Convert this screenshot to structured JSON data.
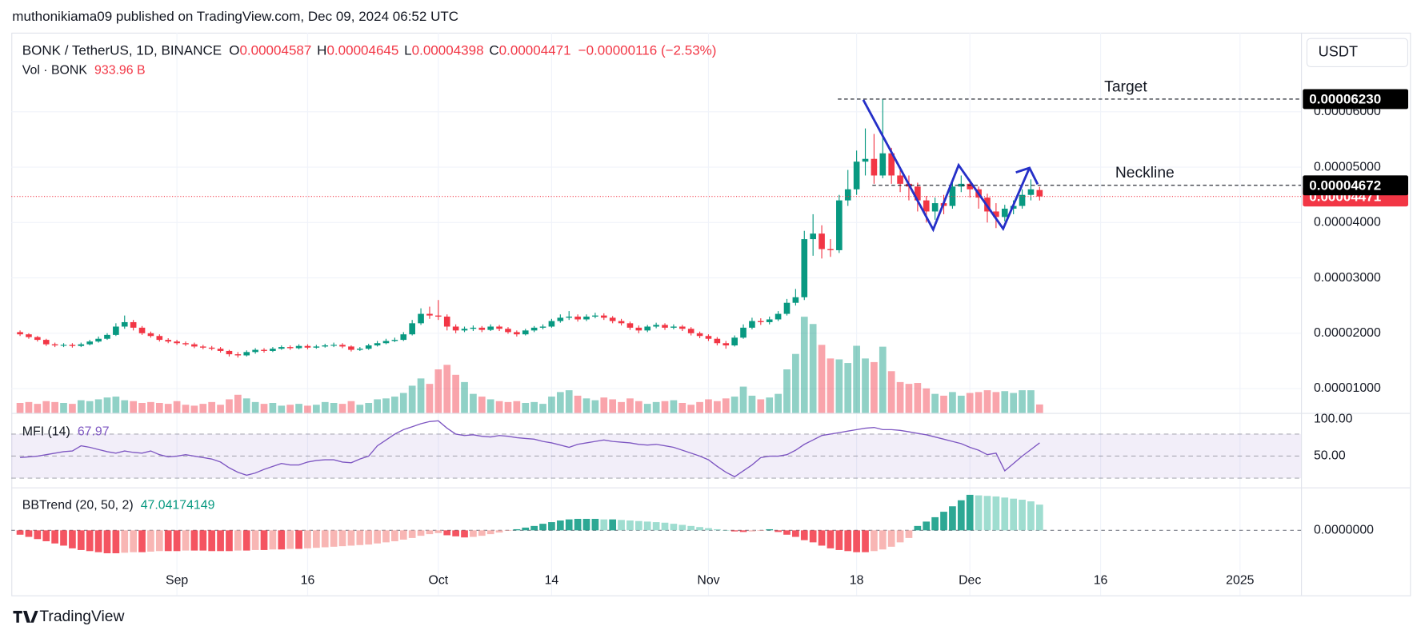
{
  "header": {
    "publisher": "muthonikiama09 published on TradingView.com, Dec 09, 2024 06:52 UTC",
    "symbol": "BONK / TetherUS, 1D, BINANCE",
    "ohlc_letters": [
      "O",
      "H",
      "L",
      "C"
    ],
    "change_label": "−0.00000116 (−2.53%)",
    "currency": "USDT"
  },
  "chart_data": [
    {
      "type": "candlestick",
      "up_color": "#089981",
      "down_color": "#f23645",
      "x": [
        "2024-08-14",
        "2024-08-15",
        "2024-08-16",
        "2024-08-17",
        "2024-08-18",
        "2024-08-19",
        "2024-08-20",
        "2024-08-21",
        "2024-08-22",
        "2024-08-23",
        "2024-08-24",
        "2024-08-25",
        "2024-08-26",
        "2024-08-27",
        "2024-08-28",
        "2024-08-29",
        "2024-08-30",
        "2024-08-31",
        "2024-09-01",
        "2024-09-02",
        "2024-09-03",
        "2024-09-04",
        "2024-09-05",
        "2024-09-06",
        "2024-09-07",
        "2024-09-08",
        "2024-09-09",
        "2024-09-10",
        "2024-09-11",
        "2024-09-12",
        "2024-09-13",
        "2024-09-14",
        "2024-09-15",
        "2024-09-16",
        "2024-09-17",
        "2024-09-18",
        "2024-09-19",
        "2024-09-20",
        "2024-09-21",
        "2024-09-22",
        "2024-09-23",
        "2024-09-24",
        "2024-09-25",
        "2024-09-26",
        "2024-09-27",
        "2024-09-28",
        "2024-09-29",
        "2024-09-30",
        "2024-10-01",
        "2024-10-02",
        "2024-10-03",
        "2024-10-04",
        "2024-10-05",
        "2024-10-06",
        "2024-10-07",
        "2024-10-08",
        "2024-10-09",
        "2024-10-10",
        "2024-10-11",
        "2024-10-12",
        "2024-10-13",
        "2024-10-14",
        "2024-10-15",
        "2024-10-16",
        "2024-10-17",
        "2024-10-18",
        "2024-10-19",
        "2024-10-20",
        "2024-10-21",
        "2024-10-22",
        "2024-10-23",
        "2024-10-24",
        "2024-10-25",
        "2024-10-26",
        "2024-10-27",
        "2024-10-28",
        "2024-10-29",
        "2024-10-30",
        "2024-10-31",
        "2024-11-01",
        "2024-11-02",
        "2024-11-03",
        "2024-11-04",
        "2024-11-05",
        "2024-11-06",
        "2024-11-07",
        "2024-11-08",
        "2024-11-09",
        "2024-11-10",
        "2024-11-11",
        "2024-11-12",
        "2024-11-13",
        "2024-11-14",
        "2024-11-15",
        "2024-11-16",
        "2024-11-17",
        "2024-11-18",
        "2024-11-19",
        "2024-11-20",
        "2024-11-21",
        "2024-11-22",
        "2024-11-23",
        "2024-11-24",
        "2024-11-25",
        "2024-11-26",
        "2024-11-27",
        "2024-11-28",
        "2024-11-29",
        "2024-11-30",
        "2024-12-01",
        "2024-12-02",
        "2024-12-03",
        "2024-12-04",
        "2024-12-05",
        "2024-12-06",
        "2024-12-07",
        "2024-12-08",
        "2024-12-09"
      ],
      "open": [
        2.02e-05,
        1.98e-05,
        1.93e-05,
        1.88e-05,
        1.8e-05,
        1.78e-05,
        1.79e-05,
        1.77e-05,
        1.8e-05,
        1.85e-05,
        1.9e-05,
        1.97e-05,
        2.12e-05,
        2.2e-05,
        2.1e-05,
        2e-05,
        1.95e-05,
        1.88e-05,
        1.85e-05,
        1.82e-05,
        1.8e-05,
        1.76e-05,
        1.74e-05,
        1.72e-05,
        1.68e-05,
        1.62e-05,
        1.6e-05,
        1.66e-05,
        1.7e-05,
        1.68e-05,
        1.72e-05,
        1.75e-05,
        1.73e-05,
        1.77e-05,
        1.74e-05,
        1.76e-05,
        1.78e-05,
        1.79e-05,
        1.76e-05,
        1.7e-05,
        1.72e-05,
        1.78e-05,
        1.82e-05,
        1.86e-05,
        1.88e-05,
        1.98e-05,
        2.18e-05,
        2.35e-05,
        2.32e-05,
        2.3e-05,
        2.12e-05,
        2.05e-05,
        2.08e-05,
        2.1e-05,
        2.06e-05,
        2.12e-05,
        2.08e-05,
        2.02e-05,
        1.98e-05,
        2.05e-05,
        2.1e-05,
        2.12e-05,
        2.22e-05,
        2.28e-05,
        2.3e-05,
        2.25e-05,
        2.3e-05,
        2.32e-05,
        2.28e-05,
        2.22e-05,
        2.18e-05,
        2.1e-05,
        2.05e-05,
        2.12e-05,
        2.15e-05,
        2.1e-05,
        2.12e-05,
        2.08e-05,
        2e-05,
        1.95e-05,
        1.9e-05,
        1.82e-05,
        1.78e-05,
        1.92e-05,
        2.1e-05,
        2.22e-05,
        2.2e-05,
        2.25e-05,
        2.35e-05,
        2.55e-05,
        2.65e-05,
        3.7e-05,
        3.8e-05,
        3.52e-05,
        3.5e-05,
        4.4e-05,
        4.6e-05,
        5.1e-05,
        5.15e-05,
        4.85e-05,
        5.25e-05,
        4.85e-05,
        4.7e-05,
        4.65e-05,
        4.4e-05,
        4.2e-05,
        4.35e-05,
        4.3e-05,
        4.65e-05,
        4.7e-05,
        4.6e-05,
        4.45e-05,
        4.2e-05,
        4.1e-05,
        4.25e-05,
        4.3e-05,
        4.5e-05,
        4.587e-05
      ],
      "high": [
        2.05e-05,
        2e-05,
        1.95e-05,
        1.9e-05,
        1.83e-05,
        1.82e-05,
        1.82e-05,
        1.83e-05,
        1.88e-05,
        1.94e-05,
        2e-05,
        2.18e-05,
        2.32e-05,
        2.24e-05,
        2.13e-05,
        2.03e-05,
        1.98e-05,
        1.91e-05,
        1.88e-05,
        1.85e-05,
        1.83e-05,
        1.79e-05,
        1.77e-05,
        1.75e-05,
        1.7e-05,
        1.66e-05,
        1.69e-05,
        1.73e-05,
        1.73e-05,
        1.75e-05,
        1.78e-05,
        1.78e-05,
        1.8e-05,
        1.8e-05,
        1.79e-05,
        1.81e-05,
        1.83e-05,
        1.82e-05,
        1.78e-05,
        1.75e-05,
        1.81e-05,
        1.86e-05,
        1.9e-05,
        1.92e-05,
        2.02e-05,
        2.24e-05,
        2.45e-05,
        2.48e-05,
        2.6e-05,
        2.34e-05,
        2.16e-05,
        2.12e-05,
        2.14e-05,
        2.13e-05,
        2.16e-05,
        2.15e-05,
        2.11e-05,
        2.05e-05,
        2.08e-05,
        2.13e-05,
        2.16e-05,
        2.26e-05,
        2.34e-05,
        2.4e-05,
        2.34e-05,
        2.34e-05,
        2.37e-05,
        2.36e-05,
        2.31e-05,
        2.26e-05,
        2.21e-05,
        2.14e-05,
        2.15e-05,
        2.19e-05,
        2.18e-05,
        2.16e-05,
        2.15e-05,
        2.11e-05,
        2.03e-05,
        1.98e-05,
        1.93e-05,
        1.86e-05,
        1.96e-05,
        2.16e-05,
        2.28e-05,
        2.27e-05,
        2.3e-05,
        2.4e-05,
        2.62e-05,
        2.8e-05,
        3.85e-05,
        4.15e-05,
        3.95e-05,
        3.7e-05,
        4.5e-05,
        4.95e-05,
        5.3e-05,
        5.7e-05,
        5.6e-05,
        6.23e-05,
        5.35e-05,
        5e-05,
        4.85e-05,
        4.72e-05,
        4.48e-05,
        4.45e-05,
        4.5e-05,
        4.75e-05,
        4.85e-05,
        4.78e-05,
        4.65e-05,
        4.52e-05,
        4.35e-05,
        4.32e-05,
        4.4e-05,
        4.6e-05,
        4.78e-05,
        4.645e-05
      ],
      "low": [
        1.95e-05,
        1.9e-05,
        1.85e-05,
        1.77e-05,
        1.75e-05,
        1.75e-05,
        1.74e-05,
        1.75e-05,
        1.78e-05,
        1.83e-05,
        1.88e-05,
        1.95e-05,
        2.08e-05,
        2.05e-05,
        1.97e-05,
        1.92e-05,
        1.85e-05,
        1.82e-05,
        1.79e-05,
        1.77e-05,
        1.73e-05,
        1.71e-05,
        1.69e-05,
        1.65e-05,
        1.58e-05,
        1.56e-05,
        1.58e-05,
        1.63e-05,
        1.65e-05,
        1.66e-05,
        1.7e-05,
        1.7e-05,
        1.71e-05,
        1.71e-05,
        1.72e-05,
        1.74e-05,
        1.75e-05,
        1.73e-05,
        1.67e-05,
        1.68e-05,
        1.7e-05,
        1.76e-05,
        1.8e-05,
        1.84e-05,
        1.86e-05,
        1.96e-05,
        2.15e-05,
        2.26e-05,
        2.24e-05,
        2.05e-05,
        2e-05,
        2.02e-05,
        2.04e-05,
        2.02e-05,
        2.04e-05,
        2.04e-05,
        1.99e-05,
        1.94e-05,
        1.96e-05,
        2.02e-05,
        2.07e-05,
        2.1e-05,
        2.19e-05,
        2.24e-05,
        2.21e-05,
        2.22e-05,
        2.27e-05,
        2.24e-05,
        2.18e-05,
        2.14e-05,
        2.06e-05,
        2e-05,
        2.02e-05,
        2.09e-05,
        2.06e-05,
        2.07e-05,
        2.04e-05,
        1.96e-05,
        1.91e-05,
        1.86e-05,
        1.78e-05,
        1.72e-05,
        1.76e-05,
        1.9e-05,
        2.07e-05,
        2.15e-05,
        2.16e-05,
        2.22e-05,
        2.32e-05,
        2.5e-05,
        2.6e-05,
        3.4e-05,
        3.35e-05,
        3.38e-05,
        3.45e-05,
        4.3e-05,
        4.5e-05,
        4.85e-05,
        4.7e-05,
        4.8e-05,
        4.7e-05,
        4.55e-05,
        4.4e-05,
        4.2e-05,
        4e-05,
        4.05e-05,
        4.15e-05,
        4.25e-05,
        4.55e-05,
        4.45e-05,
        4.25e-05,
        4e-05,
        3.9e-05,
        4.02e-05,
        4.15e-05,
        4.25e-05,
        4.4e-05,
        4.398e-05
      ],
      "close": [
        1.98e-05,
        1.93e-05,
        1.88e-05,
        1.8e-05,
        1.78e-05,
        1.79e-05,
        1.77e-05,
        1.8e-05,
        1.85e-05,
        1.9e-05,
        1.97e-05,
        2.12e-05,
        2.2e-05,
        2.1e-05,
        2e-05,
        1.95e-05,
        1.88e-05,
        1.85e-05,
        1.82e-05,
        1.8e-05,
        1.76e-05,
        1.74e-05,
        1.72e-05,
        1.68e-05,
        1.62e-05,
        1.6e-05,
        1.66e-05,
        1.7e-05,
        1.68e-05,
        1.72e-05,
        1.75e-05,
        1.73e-05,
        1.77e-05,
        1.74e-05,
        1.76e-05,
        1.78e-05,
        1.79e-05,
        1.76e-05,
        1.7e-05,
        1.72e-05,
        1.78e-05,
        1.82e-05,
        1.86e-05,
        1.88e-05,
        1.98e-05,
        2.18e-05,
        2.35e-05,
        2.32e-05,
        2.3e-05,
        2.12e-05,
        2.05e-05,
        2.08e-05,
        2.1e-05,
        2.06e-05,
        2.12e-05,
        2.08e-05,
        2.02e-05,
        1.98e-05,
        2.05e-05,
        2.1e-05,
        2.12e-05,
        2.22e-05,
        2.28e-05,
        2.3e-05,
        2.25e-05,
        2.3e-05,
        2.32e-05,
        2.28e-05,
        2.22e-05,
        2.18e-05,
        2.1e-05,
        2.05e-05,
        2.12e-05,
        2.15e-05,
        2.1e-05,
        2.12e-05,
        2.08e-05,
        2e-05,
        1.95e-05,
        1.9e-05,
        1.82e-05,
        1.78e-05,
        1.92e-05,
        2.1e-05,
        2.22e-05,
        2.2e-05,
        2.25e-05,
        2.35e-05,
        2.55e-05,
        2.65e-05,
        3.7e-05,
        3.8e-05,
        3.52e-05,
        3.5e-05,
        4.4e-05,
        4.6e-05,
        5.1e-05,
        5.15e-05,
        4.85e-05,
        5.25e-05,
        4.85e-05,
        4.7e-05,
        4.65e-05,
        4.4e-05,
        4.2e-05,
        4.35e-05,
        4.3e-05,
        4.65e-05,
        4.7e-05,
        4.6e-05,
        4.45e-05,
        4.2e-05,
        4.1e-05,
        4.25e-05,
        4.3e-05,
        4.5e-05,
        4.6e-05,
        4.471e-05
      ],
      "xlim": [
        "2024-08-13",
        "2025-01-08"
      ],
      "xticks": [
        {
          "value": "2024-09-01",
          "label": "Sep"
        },
        {
          "value": "2024-09-16",
          "label": "16"
        },
        {
          "value": "2024-10-01",
          "label": "Oct"
        },
        {
          "value": "2024-10-14",
          "label": "14"
        },
        {
          "value": "2024-11-01",
          "label": "Nov"
        },
        {
          "value": "2024-11-18",
          "label": "18"
        },
        {
          "value": "2024-12-01",
          "label": "Dec"
        },
        {
          "value": "2024-12-16",
          "label": "16"
        },
        {
          "value": "2025-01-01",
          "label": "2025"
        }
      ],
      "ylim": [
        5.6e-06,
        7.43e-05
      ],
      "yticks": [
        {
          "value": 1e-05,
          "label": "0.00001000"
        },
        {
          "value": 2e-05,
          "label": "0.00002000"
        },
        {
          "value": 3e-05,
          "label": "0.00003000"
        },
        {
          "value": 4e-05,
          "label": "0.00004000"
        },
        {
          "value": 5e-05,
          "label": "0.00005000"
        },
        {
          "value": 6e-05,
          "label": "0.00006000"
        }
      ],
      "grid": true,
      "annotations": [
        {
          "label": "Target",
          "value": 6.23e-05,
          "value_label": "0.00006230"
        },
        {
          "label": "Neckline",
          "value": 4.672e-05,
          "value_label": "0.00004672"
        }
      ]
    },
    {
      "type": "volume",
      "title": "Vol · BONK",
      "value_label": "933.96 B",
      "values": [
        1100,
        1200,
        1000,
        1300,
        1200,
        1100,
        1000,
        1400,
        1300,
        1500,
        1700,
        1800,
        1400,
        1300,
        1100,
        1200,
        1100,
        1000,
        1300,
        900,
        800,
        1000,
        1200,
        900,
        1500,
        2000,
        1600,
        1200,
        1000,
        1100,
        800,
        900,
        1000,
        800,
        900,
        1200,
        1100,
        1000,
        1300,
        900,
        1100,
        1500,
        1600,
        1800,
        2200,
        3000,
        3800,
        3200,
        4800,
        5300,
        4200,
        3400,
        2100,
        1800,
        1500,
        1300,
        1200,
        1300,
        1100,
        1200,
        1000,
        1800,
        2300,
        2500,
        1900,
        1600,
        1400,
        1700,
        1500,
        1200,
        1600,
        1300,
        1000,
        1200,
        1300,
        1400,
        1100,
        900,
        1200,
        1500,
        1300,
        1600,
        1800,
        2900,
        1900,
        1500,
        1700,
        2100,
        4800,
        6500,
        10600,
        9800,
        7500,
        6000,
        5900,
        5500,
        7400,
        6000,
        5600,
        7300,
        4600,
        3400,
        3200,
        3300,
        2700,
        2100,
        1900,
        2300,
        1900,
        2200,
        2300,
        2500,
        2300,
        2400,
        2200,
        2500,
        2500,
        933.96
      ]
    },
    {
      "type": "line",
      "title": "MFI (14)",
      "color": "#7e57c2",
      "values": [
        48,
        49,
        50,
        52,
        54,
        56,
        57,
        64,
        62,
        59,
        56,
        54,
        57,
        55,
        54,
        57,
        52,
        49,
        50,
        52,
        50,
        48,
        46,
        42,
        34,
        28,
        24,
        27,
        32,
        36,
        40,
        38,
        38,
        42,
        44,
        45,
        45,
        42,
        41,
        46,
        50,
        64,
        72,
        80,
        86,
        90,
        94,
        97,
        98,
        88,
        80,
        78,
        79,
        77,
        76,
        78,
        77,
        75,
        74,
        73,
        70,
        68,
        65,
        62,
        66,
        68,
        70,
        72,
        70,
        69,
        68,
        66,
        65,
        66,
        64,
        62,
        58,
        54,
        50,
        45,
        36,
        28,
        22,
        30,
        38,
        48,
        50,
        50,
        52,
        58,
        66,
        72,
        78,
        80,
        82,
        84,
        86,
        88,
        89,
        86,
        86,
        85,
        83,
        81,
        79,
        76,
        73,
        70,
        67,
        62,
        58,
        52,
        54,
        30,
        40,
        50,
        59,
        67.97
      ],
      "ylim": [
        7.5,
        107.5
      ],
      "yticks": [
        {
          "value": 100,
          "label": "100.00"
        },
        {
          "value": 50,
          "label": "50.00"
        }
      ],
      "levels": [
        80,
        50,
        20
      ]
    },
    {
      "type": "bar",
      "title": "BBTrend (20, 50, 2)",
      "values": [
        -8,
        -12,
        -16,
        -20,
        -24,
        -28,
        -33,
        -36,
        -38,
        -40,
        -42,
        -42,
        -41,
        -40,
        -40,
        -39,
        -38,
        -38,
        -38,
        -37,
        -37,
        -37,
        -38,
        -38,
        -38,
        -37,
        -37,
        -36,
        -36,
        -35,
        -35,
        -34,
        -34,
        -33,
        -32,
        -31,
        -30,
        -29,
        -28,
        -27,
        -26,
        -24,
        -22,
        -20,
        -17,
        -14,
        -10,
        -7,
        -5,
        -9,
        -11,
        -13,
        -12,
        -10,
        -7,
        -4,
        -1,
        2,
        5,
        8,
        12,
        15,
        18,
        20,
        21,
        21,
        21,
        20,
        20,
        19,
        18,
        17,
        16,
        15,
        14,
        12,
        10,
        8,
        6,
        4,
        2,
        0,
        -2,
        -3,
        -2,
        -1,
        2,
        -3,
        -8,
        -12,
        -18,
        -22,
        -28,
        -33,
        -36,
        -38,
        -40,
        -40,
        -38,
        -35,
        -30,
        -22,
        -14,
        8,
        16,
        24,
        34,
        44,
        55,
        65,
        64,
        63,
        62,
        60,
        58,
        56,
        53,
        47.04174149
      ],
      "ylim": [
        -119,
        77
      ],
      "yticks": [
        {
          "value": 0,
          "label": "0.0000000"
        }
      ]
    }
  ],
  "footer": {
    "brand": "TradingView"
  }
}
